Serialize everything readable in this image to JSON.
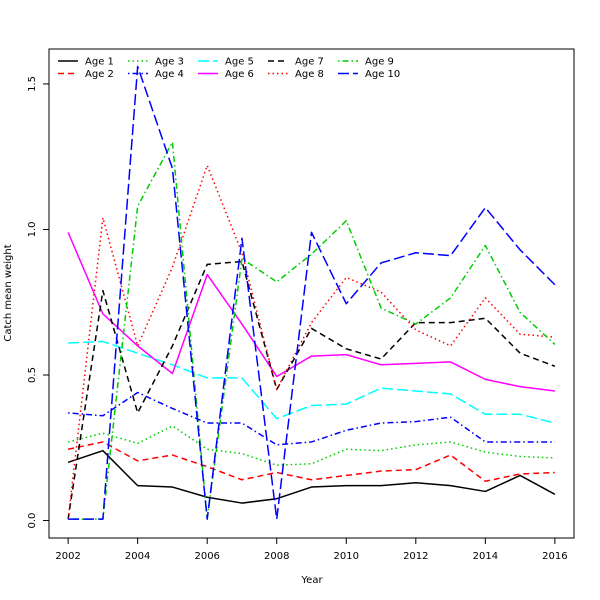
{
  "chart_data": {
    "type": "line",
    "title": "",
    "xlabel": "Year",
    "ylabel": "Catch mean weight",
    "xlim": [
      2001.45,
      2016.55
    ],
    "ylim": [
      -0.06,
      1.62
    ],
    "x_ticks": [
      2002,
      2004,
      2006,
      2008,
      2010,
      2012,
      2014,
      2016
    ],
    "y_ticks": [
      0.0,
      0.5,
      1.0,
      1.5
    ],
    "y_tick_labels": [
      "0.0",
      "0.5",
      "1.0",
      "1.5"
    ],
    "grid": false,
    "legend_position": "top-left",
    "x": [
      2002,
      2003,
      2004,
      2005,
      2006,
      2007,
      2008,
      2009,
      2010,
      2011,
      2012,
      2013,
      2014,
      2015,
      2016
    ],
    "series": [
      {
        "name": "Age 1",
        "color": "#000000",
        "dash": "solid",
        "values": [
          0.2,
          0.24,
          0.12,
          0.115,
          0.08,
          0.06,
          0.075,
          0.115,
          0.12,
          0.12,
          0.13,
          0.12,
          0.1,
          0.155,
          0.09
        ]
      },
      {
        "name": "Age 2",
        "color": "#ff0000",
        "dash": "dashed",
        "values": [
          0.245,
          0.27,
          0.205,
          0.225,
          0.185,
          0.14,
          0.165,
          0.14,
          0.155,
          0.17,
          0.175,
          0.225,
          0.135,
          0.16,
          0.165
        ]
      },
      {
        "name": "Age 3",
        "color": "#00cd00",
        "dash": "dotted",
        "values": [
          0.27,
          0.3,
          0.265,
          0.325,
          0.245,
          0.23,
          0.19,
          0.195,
          0.245,
          0.24,
          0.26,
          0.27,
          0.235,
          0.22,
          0.215
        ]
      },
      {
        "name": "Age 4",
        "color": "#0000ff",
        "dash": "dotdash",
        "values": [
          0.37,
          0.36,
          0.44,
          0.385,
          0.335,
          0.335,
          0.26,
          0.27,
          0.31,
          0.335,
          0.34,
          0.355,
          0.27,
          0.27,
          0.27
        ]
      },
      {
        "name": "Age 5",
        "color": "#00ffff",
        "dash": "longdash",
        "values": [
          0.61,
          0.615,
          0.575,
          0.535,
          0.49,
          0.49,
          0.35,
          0.395,
          0.4,
          0.455,
          0.445,
          0.435,
          0.365,
          0.365,
          0.335
        ]
      },
      {
        "name": "Age 6",
        "color": "#ff00ff",
        "dash": "solid",
        "values": [
          0.99,
          0.71,
          0.6,
          0.505,
          0.845,
          0.675,
          0.495,
          0.565,
          0.57,
          0.535,
          0.54,
          0.545,
          0.485,
          0.46,
          0.445
        ]
      },
      {
        "name": "Age 7",
        "color": "#000000",
        "dash": "dashed",
        "values": [
          0.005,
          0.79,
          0.37,
          0.6,
          0.88,
          0.89,
          0.45,
          0.66,
          0.59,
          0.555,
          0.68,
          0.68,
          0.695,
          0.575,
          0.53
        ]
      },
      {
        "name": "Age 8",
        "color": "#ff0000",
        "dash": "dotted",
        "values": [
          0.005,
          1.04,
          0.6,
          0.87,
          1.22,
          0.92,
          0.45,
          0.68,
          0.835,
          0.785,
          0.655,
          0.6,
          0.765,
          0.64,
          0.63
        ]
      },
      {
        "name": "Age 9",
        "color": "#00cd00",
        "dash": "dotdash",
        "values": [
          0.005,
          0.005,
          1.08,
          1.3,
          0.005,
          0.9,
          0.82,
          0.915,
          1.03,
          0.73,
          0.675,
          0.765,
          0.945,
          0.715,
          0.605
        ]
      },
      {
        "name": "Age 10",
        "color": "#0000ff",
        "dash": "longdash",
        "values": [
          0.005,
          0.005,
          1.56,
          1.21,
          0.005,
          0.97,
          0.005,
          0.99,
          0.745,
          0.885,
          0.92,
          0.91,
          1.075,
          0.93,
          0.81
        ]
      }
    ]
  }
}
